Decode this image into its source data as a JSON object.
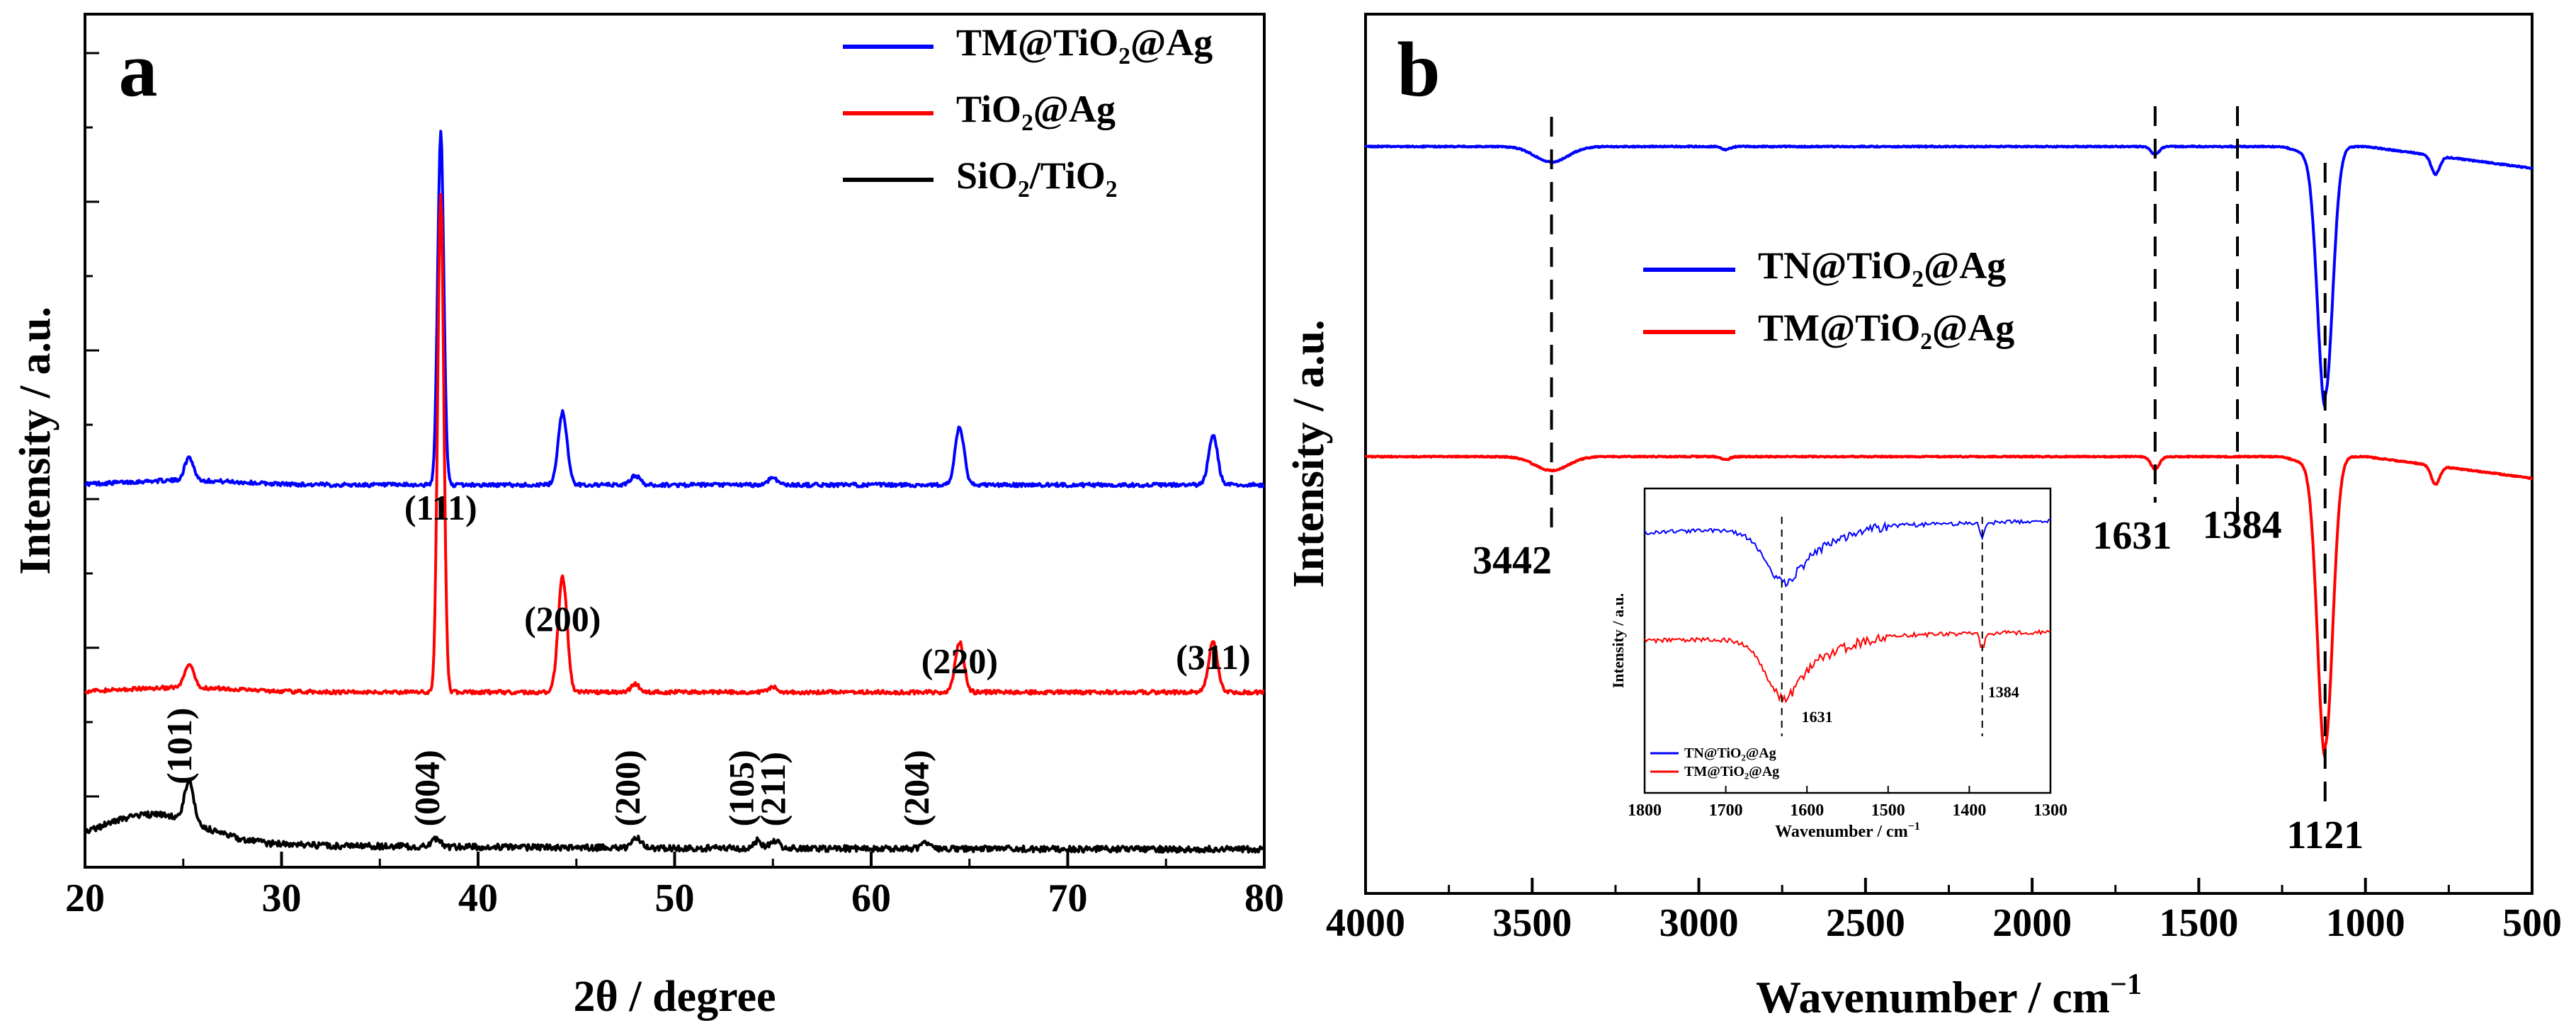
{
  "chart_data": [
    {
      "panel": "a",
      "type": "line",
      "xlabel": "2θ / degree",
      "ylabel": "Intensity / a.u.",
      "xlim": [
        20,
        80
      ],
      "x_ticks": [
        20,
        30,
        40,
        50,
        60,
        70,
        80
      ],
      "y_ticks_labeled": false,
      "legend": [
        {
          "label": "TM@TiO",
          "sub": "2",
          "tail": "@Ag",
          "color": "#0000ff"
        },
        {
          "label": "TiO",
          "sub": "2",
          "tail": "@Ag",
          "color": "#ff0000"
        },
        {
          "label": "SiO",
          "sub": "2",
          "tail": "/TiO",
          "sub2": "2",
          "color": "#000000"
        }
      ],
      "series": [
        {
          "name": "TM@TiO2@Ag",
          "color": "#0000ff",
          "offset": 0.95,
          "peaks": [
            [
              25.3,
              0.06
            ],
            [
              38.1,
              0.92
            ],
            [
              44.3,
              0.19
            ],
            [
              48.0,
              0.025
            ],
            [
              55.0,
              0.02
            ],
            [
              64.5,
              0.15
            ],
            [
              77.4,
              0.13
            ]
          ]
        },
        {
          "name": "TiO2@Ag",
          "color": "#ff0000",
          "offset": 0.41,
          "peaks": [
            [
              25.3,
              0.06
            ],
            [
              38.1,
              1.3
            ],
            [
              44.3,
              0.3
            ],
            [
              48.0,
              0.02
            ],
            [
              55.0,
              0.015
            ],
            [
              64.5,
              0.13
            ],
            [
              77.4,
              0.13
            ]
          ]
        },
        {
          "name": "SiO2/TiO2",
          "color": "#000000",
          "offset": 0.0,
          "peaks": [
            [
              25.3,
              0.11
            ],
            [
              37.9,
              0.02
            ],
            [
              48.1,
              0.025
            ],
            [
              54.2,
              0.02
            ],
            [
              55.1,
              0.02
            ],
            [
              62.8,
              0.015
            ]
          ]
        }
      ],
      "annotations": [
        {
          "text": "(111)",
          "x": 38.1,
          "y": 0.86,
          "rotated": false
        },
        {
          "text": "(200)",
          "x": 44.3,
          "y": 0.57,
          "rotated": false
        },
        {
          "text": "(220)",
          "x": 64.5,
          "y": 0.46,
          "rotated": false
        },
        {
          "text": "(311)",
          "x": 77.4,
          "y": 0.47,
          "rotated": false
        },
        {
          "text": "(101)",
          "x": 25.4,
          "y": 0.17,
          "rotated": true
        },
        {
          "text": "(004)",
          "x": 38.0,
          "y": 0.06,
          "rotated": true
        },
        {
          "text": "(200)",
          "x": 48.2,
          "y": 0.06,
          "rotated": true
        },
        {
          "text": "(105)",
          "x": 54.0,
          "y": 0.06,
          "rotated": true
        },
        {
          "text": "(211)",
          "x": 55.6,
          "y": 0.06,
          "rotated": true
        },
        {
          "text": "(204)",
          "x": 62.9,
          "y": 0.06,
          "rotated": true
        }
      ]
    },
    {
      "panel": "b",
      "type": "line",
      "xlabel": "Wavenumber / cm",
      "xlabel_sup": "−1",
      "ylabel": "Intensity / a.u.",
      "xlim": [
        4000,
        500
      ],
      "x_ticks": [
        4000,
        3500,
        3000,
        2500,
        2000,
        1500,
        1000,
        500
      ],
      "y_ticks_labeled": false,
      "legend": [
        {
          "label": "TN@TiO",
          "sub": "2",
          "tail": "@Ag",
          "color": "#0000ff"
        },
        {
          "label": "TM@TiO",
          "sub": "2",
          "tail": "@Ag",
          "color": "#ff0000"
        }
      ],
      "series": [
        {
          "name": "TN@TiO2@Ag",
          "color": "#0000ff",
          "baseline": 1.0,
          "bands": [
            [
              3442,
              0.05
            ],
            [
              2920,
              0.01
            ],
            [
              1631,
              0.025
            ],
            [
              1121,
              0.8
            ],
            [
              790,
              0.06
            ]
          ]
        },
        {
          "name": "TM@TiO2@Ag",
          "color": "#ff0000",
          "baseline": 0.0,
          "bands": [
            [
              3442,
              0.045
            ],
            [
              2920,
              0.01
            ],
            [
              1631,
              0.04
            ],
            [
              1121,
              0.93
            ],
            [
              790,
              0.06
            ]
          ]
        }
      ],
      "marker_lines": [
        3442,
        1631,
        1384,
        1121
      ],
      "annotations": [
        {
          "text": "3442",
          "x": 3560
        },
        {
          "text": "1631",
          "x": 1700
        },
        {
          "text": "1384",
          "x": 1370
        },
        {
          "text": "1121",
          "x": 1121
        }
      ],
      "inset": {
        "xlabel": "Wavenumber / cm",
        "xlabel_sup": "−1",
        "ylabel": "Intensity / a.u.",
        "xlim": [
          1800,
          1300
        ],
        "x_ticks": [
          1800,
          1700,
          1600,
          1500,
          1400,
          1300
        ],
        "marker_lines": [
          1631,
          1384
        ],
        "annotations": [
          "1631",
          "1384"
        ],
        "legend": [
          {
            "label": "TN@TiO",
            "sub": "2",
            "tail": "@Ag",
            "color": "#0000ff"
          },
          {
            "label": "TM@TiO",
            "sub": "2",
            "tail": "@Ag",
            "color": "#ff0000"
          }
        ]
      }
    }
  ]
}
